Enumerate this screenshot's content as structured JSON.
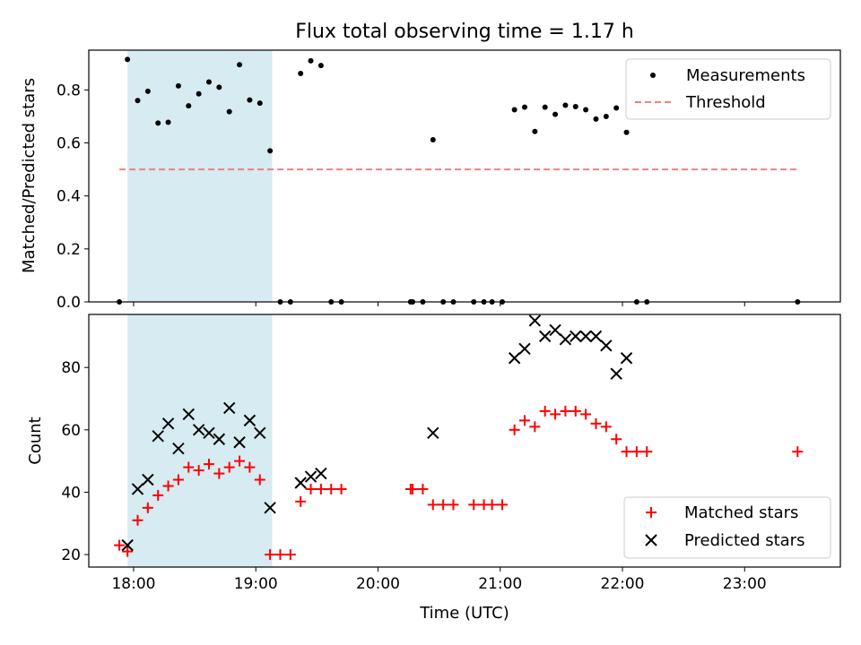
{
  "chart_data": [
    {
      "type": "scatter",
      "title": "Flux total observing time = 1.17 h",
      "xlabel": "",
      "ylabel": "Matched/Predicted stars",
      "xlim": [
        "17:38",
        "23:47"
      ],
      "ylim": [
        0,
        0.95
      ],
      "yticks": [
        0.0,
        0.2,
        0.4,
        0.6,
        0.8
      ],
      "ytick_labels": [
        "0.0",
        "0.2",
        "0.4",
        "0.6",
        "0.8"
      ],
      "xticks": [
        "18:00",
        "19:00",
        "20:00",
        "21:00",
        "22:00",
        "23:00"
      ],
      "show_xtick_labels": false,
      "shaded_span": {
        "from": "17:57",
        "to": "19:08",
        "color": "#add8e6"
      },
      "legend": {
        "position": "top-right",
        "entries": [
          "Measurements",
          "Threshold"
        ]
      },
      "series": [
        {
          "name": "Measurements",
          "style": "dot",
          "color": "#000000",
          "points": [
            [
              "17:53",
              0.0
            ],
            [
              "17:57",
              0.915
            ],
            [
              "18:02",
              0.76
            ],
            [
              "18:07",
              0.795
            ],
            [
              "18:12",
              0.675
            ],
            [
              "18:17",
              0.678
            ],
            [
              "18:22",
              0.815
            ],
            [
              "18:27",
              0.74
            ],
            [
              "18:32",
              0.785
            ],
            [
              "18:37",
              0.83
            ],
            [
              "18:42",
              0.81
            ],
            [
              "18:47",
              0.718
            ],
            [
              "18:52",
              0.895
            ],
            [
              "18:57",
              0.762
            ],
            [
              "19:02",
              0.75
            ],
            [
              "19:07",
              0.57
            ],
            [
              "19:12",
              0.0
            ],
            [
              "19:17",
              0.0
            ],
            [
              "19:22",
              0.862
            ],
            [
              "19:27",
              0.91
            ],
            [
              "19:32",
              0.892
            ],
            [
              "19:37",
              0.0
            ],
            [
              "19:42",
              0.0
            ],
            [
              "20:16",
              0.0
            ],
            [
              "20:17",
              0.0
            ],
            [
              "20:22",
              0.0
            ],
            [
              "20:27",
              0.612
            ],
            [
              "20:32",
              0.0
            ],
            [
              "20:37",
              0.0
            ],
            [
              "20:47",
              0.0
            ],
            [
              "20:52",
              0.0
            ],
            [
              "20:56",
              0.0
            ],
            [
              "21:01",
              0.0
            ],
            [
              "21:07",
              0.725
            ],
            [
              "21:12",
              0.735
            ],
            [
              "21:17",
              0.643
            ],
            [
              "21:22",
              0.735
            ],
            [
              "21:27",
              0.708
            ],
            [
              "21:32",
              0.742
            ],
            [
              "21:37",
              0.737
            ],
            [
              "21:42",
              0.725
            ],
            [
              "21:47",
              0.69
            ],
            [
              "21:52",
              0.7
            ],
            [
              "21:57",
              0.732
            ],
            [
              "22:02",
              0.64
            ],
            [
              "22:07",
              0.0
            ],
            [
              "22:12",
              0.0
            ],
            [
              "23:26",
              0.0
            ]
          ]
        },
        {
          "name": "Threshold",
          "style": "dashed-line",
          "color": "#f08080",
          "points": [
            [
              "17:53",
              0.5
            ],
            [
              "23:26",
              0.5
            ]
          ]
        }
      ]
    },
    {
      "type": "scatter",
      "title": "",
      "xlabel": "Time (UTC)",
      "ylabel": "Count",
      "xlim": [
        "17:38",
        "23:47"
      ],
      "ylim": [
        16,
        97
      ],
      "yticks": [
        20,
        40,
        60,
        80
      ],
      "ytick_labels": [
        "20",
        "40",
        "60",
        "80"
      ],
      "xticks": [
        "18:00",
        "19:00",
        "20:00",
        "21:00",
        "22:00",
        "23:00"
      ],
      "xtick_labels": [
        "18:00",
        "19:00",
        "20:00",
        "21:00",
        "22:00",
        "23:00"
      ],
      "shaded_span": {
        "from": "17:57",
        "to": "19:08",
        "color": "#add8e6"
      },
      "legend": {
        "position": "bottom-right",
        "entries": [
          "Matched stars",
          "Predicted stars"
        ]
      },
      "series": [
        {
          "name": "Matched stars",
          "style": "plus",
          "color": "#ff0000",
          "points": [
            [
              "17:53",
              23
            ],
            [
              "17:57",
              21
            ],
            [
              "18:02",
              31
            ],
            [
              "18:07",
              35
            ],
            [
              "18:12",
              39
            ],
            [
              "18:17",
              42
            ],
            [
              "18:22",
              44
            ],
            [
              "18:27",
              48
            ],
            [
              "18:32",
              47
            ],
            [
              "18:37",
              49
            ],
            [
              "18:42",
              46
            ],
            [
              "18:47",
              48
            ],
            [
              "18:52",
              50
            ],
            [
              "18:57",
              48
            ],
            [
              "19:02",
              44
            ],
            [
              "19:07",
              20
            ],
            [
              "19:12",
              20
            ],
            [
              "19:17",
              20
            ],
            [
              "19:22",
              37
            ],
            [
              "19:27",
              41
            ],
            [
              "19:32",
              41
            ],
            [
              "19:37",
              41
            ],
            [
              "19:42",
              41
            ],
            [
              "20:16",
              41
            ],
            [
              "20:17",
              41
            ],
            [
              "20:22",
              41
            ],
            [
              "20:27",
              36
            ],
            [
              "20:32",
              36
            ],
            [
              "20:37",
              36
            ],
            [
              "20:47",
              36
            ],
            [
              "20:52",
              36
            ],
            [
              "20:56",
              36
            ],
            [
              "21:01",
              36
            ],
            [
              "21:07",
              60
            ],
            [
              "21:12",
              63
            ],
            [
              "21:17",
              61
            ],
            [
              "21:22",
              66
            ],
            [
              "21:27",
              65
            ],
            [
              "21:32",
              66
            ],
            [
              "21:37",
              66
            ],
            [
              "21:42",
              65
            ],
            [
              "21:47",
              62
            ],
            [
              "21:52",
              61
            ],
            [
              "21:57",
              57
            ],
            [
              "22:02",
              53
            ],
            [
              "22:07",
              53
            ],
            [
              "22:12",
              53
            ],
            [
              "23:26",
              53
            ]
          ]
        },
        {
          "name": "Predicted stars",
          "style": "x",
          "color": "#000000",
          "points": [
            [
              "17:57",
              23
            ],
            [
              "18:02",
              41
            ],
            [
              "18:07",
              44
            ],
            [
              "18:12",
              58
            ],
            [
              "18:17",
              62
            ],
            [
              "18:22",
              54
            ],
            [
              "18:27",
              65
            ],
            [
              "18:32",
              60
            ],
            [
              "18:37",
              59
            ],
            [
              "18:42",
              57
            ],
            [
              "18:47",
              67
            ],
            [
              "18:52",
              56
            ],
            [
              "18:57",
              63
            ],
            [
              "19:02",
              59
            ],
            [
              "19:07",
              35
            ],
            [
              "19:22",
              43
            ],
            [
              "19:27",
              45
            ],
            [
              "19:32",
              46
            ],
            [
              "20:27",
              59
            ],
            [
              "21:07",
              83
            ],
            [
              "21:12",
              86
            ],
            [
              "21:17",
              95
            ],
            [
              "21:22",
              90
            ],
            [
              "21:27",
              92
            ],
            [
              "21:32",
              89
            ],
            [
              "21:37",
              90
            ],
            [
              "21:42",
              90
            ],
            [
              "21:47",
              90
            ],
            [
              "21:52",
              87
            ],
            [
              "21:57",
              78
            ],
            [
              "22:02",
              83
            ]
          ]
        }
      ]
    }
  ]
}
